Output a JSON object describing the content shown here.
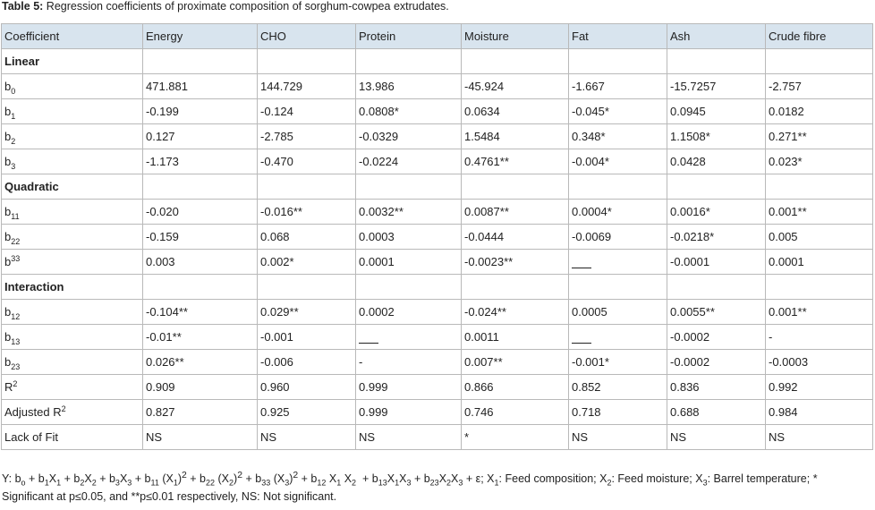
{
  "caption": {
    "label": "Table 5:",
    "text": " Regression coefficients of proximate composition of sorghum-cowpea extrudates."
  },
  "columns": [
    "Coefficient",
    "Energy",
    "CHO",
    "Protein",
    "Moisture",
    "Fat",
    "Ash",
    "Crude fibre"
  ],
  "sections": [
    {
      "title": "Linear",
      "rows": [
        {
          "base": "b",
          "sub": "0",
          "values": [
            "471.881",
            "144.729",
            "13.986",
            "-45.924",
            "-1.667",
            "-15.7257",
            "-2.757"
          ]
        },
        {
          "base": "b",
          "sub": "1",
          "values": [
            "-0.199",
            "-0.124",
            "0.0808*",
            "0.0634",
            "-0.045*",
            "0.0945",
            "0.0182"
          ]
        },
        {
          "base": "b",
          "sub": "2",
          "values": [
            "0.127",
            "-2.785",
            "-0.0329",
            "1.5484",
            "0.348*",
            "1.1508*",
            "0.271**"
          ]
        },
        {
          "base": "b",
          "sub": "3",
          "values": [
            "-1.173",
            "-0.470",
            "-0.0224",
            "0.4761**",
            "-0.004*",
            "0.0428",
            "0.023*"
          ]
        }
      ]
    },
    {
      "title": "Quadratic",
      "rows": [
        {
          "base": "b",
          "sub": "11",
          "values": [
            "-0.020",
            "-0.016**",
            "0.0032**",
            "0.0087**",
            "0.0004*",
            "0.0016*",
            "0.001**"
          ]
        },
        {
          "base": "b",
          "sub": "22",
          "values": [
            "-0.159",
            "0.068",
            "0.0003",
            "-0.0444",
            "-0.0069",
            "-0.0218*",
            "0.005"
          ]
        },
        {
          "base": "b",
          "sup": "33",
          "values": [
            "0.003",
            "0.002*",
            "0.0001",
            "-0.0023**",
            "___",
            "-0.0001",
            "0.0001"
          ]
        }
      ]
    },
    {
      "title": "Interaction",
      "rows": [
        {
          "base": "b",
          "sub": "12",
          "values": [
            "-0.104**",
            "0.029**",
            "0.0002",
            "-0.024**",
            "0.0005",
            "0.0055**",
            "0.001**"
          ]
        },
        {
          "base": "b",
          "sub": "13",
          "values": [
            "-0.01**",
            "-0.001",
            "___",
            "0.0011",
            "___",
            "-0.0002",
            "-"
          ]
        },
        {
          "base": "b",
          "sub": "23",
          "values": [
            "0.026**",
            "-0.006",
            "-",
            "0.007**",
            "-0.001*",
            "-0.0002",
            "-0.0003"
          ]
        }
      ]
    }
  ],
  "stats_rows": [
    {
      "base": "R",
      "sup": "2",
      "values": [
        "0.909",
        "0.960",
        "0.999",
        "0.866",
        "0.852",
        "0.836",
        "0.992"
      ]
    },
    {
      "base": "Adjusted R",
      "sup": "2",
      "values": [
        "0.827",
        "0.925",
        "0.999",
        "0.746",
        "0.718",
        "0.688",
        "0.984"
      ]
    },
    {
      "base": "Lack of Fit",
      "values": [
        "NS",
        "NS",
        "NS",
        "*",
        "NS",
        "NS",
        "NS"
      ]
    }
  ],
  "footnote": {
    "line1_html": "Y: b<sub>o</sub> + b<sub>1</sub>X<sub>1</sub> + b<sub>2</sub>X<sub>2</sub> + b<sub>3</sub>X<sub>3</sub> + b<sub>11</sub> (X<sub>1</sub>)<sup>2</sup> + b<sub>22</sub> (X<sub>2</sub>)<sup>2</sup> + b<sub>33</sub> (X<sub>3</sub>)<sup>2</sup> + b<sub>12</sub> X<sub>1</sub> X<sub>2</sub>&nbsp; + b<sub>13</sub>X<sub>1</sub>X<sub>3</sub> + b<sub>23</sub>X<sub>2</sub>X<sub>3</sub> + ε; X<sub>1</sub>: Feed composition; X<sub>2</sub>: Feed moisture; X<sub>3</sub>: Barrel temperature; *",
    "line2": "Significant at  p≤0.05, and **p≤0.01 respectively, NS: Not significant."
  },
  "colors": {
    "header_bg": "#d8e4ee",
    "border": "#b9b9b9",
    "text": "#222222"
  }
}
